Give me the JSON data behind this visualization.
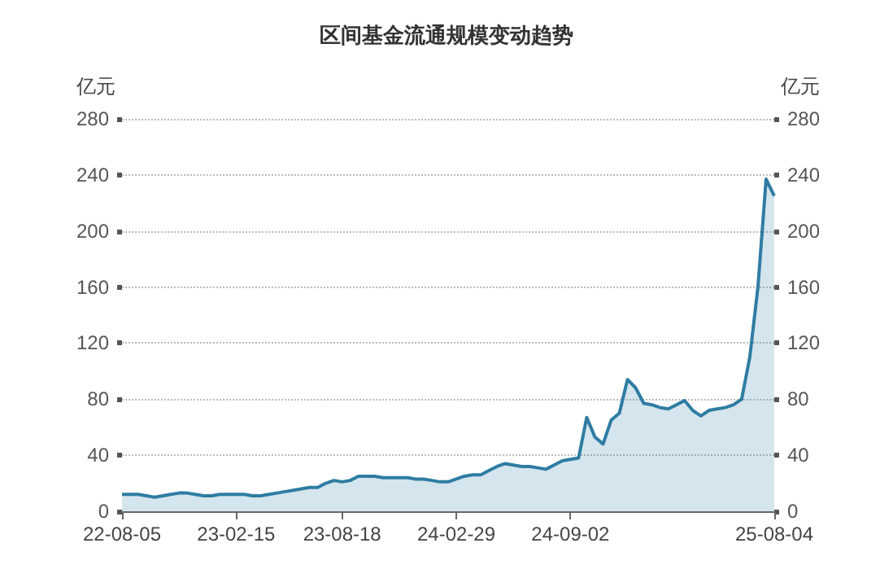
{
  "chart_data": {
    "type": "area",
    "title": "区间基金流通规模变动趋势",
    "ylabel": "亿元",
    "y2label": "亿元",
    "categories": [
      "22-08-05",
      null,
      null,
      null,
      null,
      null,
      null,
      null,
      null,
      null,
      null,
      null,
      null,
      null,
      "23-02-15",
      null,
      null,
      null,
      null,
      null,
      null,
      null,
      null,
      null,
      null,
      null,
      null,
      "23-08-18",
      null,
      null,
      null,
      null,
      null,
      null,
      null,
      null,
      null,
      null,
      null,
      null,
      null,
      "24-02-29",
      null,
      null,
      null,
      null,
      null,
      null,
      null,
      null,
      null,
      null,
      null,
      null,
      null,
      "24-09-02",
      null,
      null,
      null,
      null,
      null,
      null,
      null,
      null,
      null,
      null,
      null,
      null,
      null,
      null,
      null,
      null,
      null,
      null,
      null,
      null,
      null,
      null,
      null,
      null,
      "25-08-04"
    ],
    "series": [
      {
        "color": "#2f7ca3",
        "values": [
          12,
          12,
          12,
          11,
          10,
          11,
          12,
          13,
          13,
          12,
          11,
          11,
          12,
          12,
          12,
          12,
          11,
          11,
          12,
          13,
          14,
          15,
          16,
          17,
          17,
          20,
          22,
          21,
          22,
          25,
          25,
          25,
          24,
          24,
          24,
          24,
          23,
          23,
          22,
          21,
          21,
          23,
          25,
          26,
          26,
          29,
          32,
          34,
          33,
          32,
          32,
          31,
          30,
          33,
          36,
          37,
          38,
          67,
          53,
          48,
          65,
          70,
          94,
          88,
          77,
          76,
          74,
          73,
          76,
          79,
          72,
          68,
          72,
          73,
          74,
          76,
          80,
          110,
          160,
          237,
          225
        ]
      }
    ],
    "ylim": [
      0,
      280
    ],
    "yticks": [
      0,
      40,
      80,
      120,
      160,
      200,
      240,
      280
    ],
    "y2lim": [
      0,
      280
    ],
    "y2ticks": [
      0,
      40,
      80,
      120,
      160,
      200,
      240,
      280
    ],
    "grid": "y",
    "marker": "none",
    "line_style": "solid"
  }
}
